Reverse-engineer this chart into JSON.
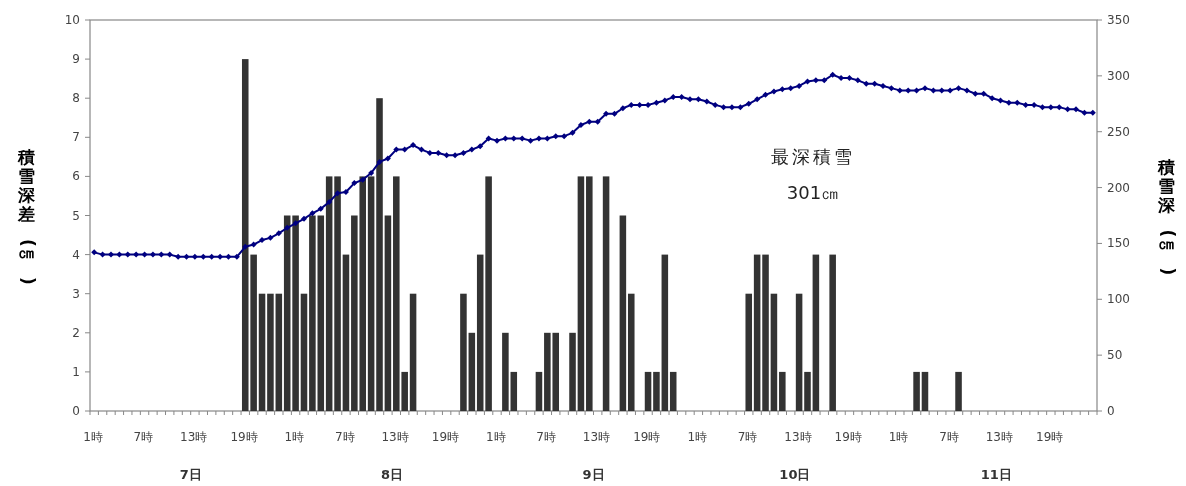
{
  "chart_data": {
    "type": "bar",
    "ylabel": "積雪深差(㎝)",
    "y2label": "積雪深(㎝)",
    "categories": [
      "1時",
      null,
      null,
      null,
      null,
      null,
      "7時",
      null,
      null,
      null,
      null,
      null,
      "13時",
      null,
      null,
      null,
      null,
      null,
      "19時",
      null,
      null,
      null,
      null,
      null,
      "1時",
      null,
      null,
      null,
      null,
      null,
      "7時",
      null,
      null,
      null,
      null,
      null,
      "13時",
      null,
      null,
      null,
      null,
      null,
      "19時",
      null,
      null,
      null,
      null,
      null,
      "1時",
      null,
      null,
      null,
      null,
      null,
      "7時",
      null,
      null,
      null,
      null,
      null,
      "13時",
      null,
      null,
      null,
      null,
      null,
      "19時",
      null,
      null,
      null,
      null,
      null,
      "1時",
      null,
      null,
      null,
      null,
      null,
      "7時",
      null,
      null,
      null,
      null,
      null,
      "13時",
      null,
      null,
      null,
      null,
      null,
      "19時",
      null,
      null,
      null,
      null,
      null,
      "1時",
      null,
      null,
      null,
      null,
      null,
      "7時",
      null,
      null,
      null,
      null,
      null,
      "13時",
      null,
      null,
      null,
      null,
      null,
      "19時",
      null,
      null,
      null,
      null,
      null
    ],
    "series": [
      {
        "color": "#333333",
        "values": [
          0,
          0,
          0,
          0,
          0,
          0,
          0,
          0,
          0,
          0,
          0,
          0,
          0,
          0,
          0,
          0,
          0,
          0,
          9,
          4,
          3,
          3,
          3,
          5,
          5,
          3,
          5,
          5,
          6,
          6,
          4,
          5,
          6,
          6,
          8,
          5,
          6,
          1,
          3,
          0,
          0,
          0,
          0,
          0,
          3,
          2,
          4,
          6,
          0,
          2,
          1,
          0,
          0,
          1,
          2,
          2,
          0,
          2,
          6,
          6,
          0,
          6,
          0,
          5,
          3,
          0,
          1,
          1,
          4,
          1,
          0,
          0,
          0,
          0,
          0,
          0,
          0,
          0,
          3,
          4,
          4,
          3,
          1,
          0,
          3,
          1,
          4,
          0,
          4,
          0,
          0,
          0,
          0,
          0,
          0,
          0,
          0,
          0,
          1,
          1,
          0,
          0,
          0,
          1,
          0,
          0,
          0,
          0,
          0,
          0,
          0,
          0,
          0,
          0,
          0,
          0,
          0,
          0,
          0,
          0
        ]
      },
      {
        "type": "line",
        "axis": "y2",
        "color": "#000080",
        "marker": "diamond",
        "line_style": "solid",
        "values": [
          142,
          140,
          140,
          140,
          140,
          140,
          140,
          140,
          140,
          140,
          138,
          138,
          138,
          138,
          138,
          138,
          138,
          138,
          147,
          149,
          153,
          155,
          159,
          164,
          168,
          172,
          177,
          181,
          187,
          195,
          196,
          204,
          207,
          213,
          223,
          226,
          234,
          234,
          238,
          234,
          231,
          231,
          229,
          229,
          231,
          234,
          237,
          244,
          242,
          244,
          244,
          244,
          242,
          244,
          244,
          246,
          246,
          249,
          256,
          259,
          259,
          266,
          266,
          271,
          274,
          274,
          274,
          276,
          278,
          281,
          281,
          279,
          279,
          277,
          274,
          272,
          272,
          272,
          275,
          279,
          283,
          286,
          288,
          289,
          291,
          295,
          296,
          296,
          301,
          298,
          298,
          296,
          293,
          293,
          291,
          289,
          287,
          287,
          287,
          289,
          287,
          287,
          287,
          289,
          287,
          284,
          284,
          280,
          278,
          276,
          276,
          274,
          274,
          272,
          272,
          272,
          270,
          270,
          267,
          267
        ]
      }
    ],
    "ylim": [
      0,
      10
    ],
    "yticks": [
      0,
      1,
      2,
      3,
      4,
      5,
      6,
      7,
      8,
      9,
      10
    ],
    "y2lim": [
      0,
      350
    ],
    "y2ticks": [
      0,
      50,
      100,
      150,
      200,
      250,
      300,
      350
    ],
    "annotations": [
      "7日",
      "8日",
      "9日",
      "10日",
      "11日",
      "最深積雪\n301㎝"
    ]
  }
}
